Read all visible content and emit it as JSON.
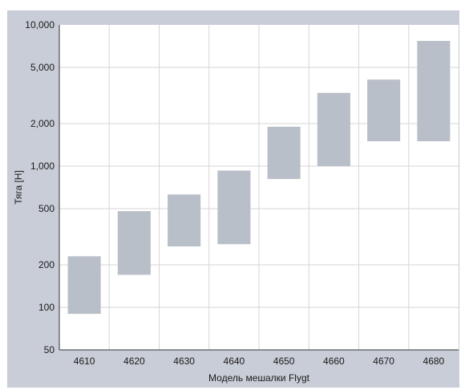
{
  "chart_data": {
    "type": "floating-bar",
    "xlabel": "Модель мешалки Flygt",
    "ylabel": "Тяга [Н]",
    "yscale": "log",
    "ylim": [
      50,
      10000
    ],
    "grid": true,
    "categories": [
      "4610",
      "4620",
      "4630",
      "4640",
      "4650",
      "4660",
      "4670",
      "4680"
    ],
    "ranges": [
      {
        "min": 90,
        "max": 230
      },
      {
        "min": 170,
        "max": 480
      },
      {
        "min": 270,
        "max": 630
      },
      {
        "min": 280,
        "max": 930
      },
      {
        "min": 810,
        "max": 1900
      },
      {
        "min": 1000,
        "max": 3300
      },
      {
        "min": 1500,
        "max": 4100
      },
      {
        "min": 1500,
        "max": 7700
      }
    ],
    "yticks": [
      {
        "value": 50,
        "label": "50"
      },
      {
        "value": 100,
        "label": "100"
      },
      {
        "value": 200,
        "label": "200"
      },
      {
        "value": 500,
        "label": "500"
      },
      {
        "value": 1000,
        "label": "1,000"
      },
      {
        "value": 2000,
        "label": "2,000"
      },
      {
        "value": 5000,
        "label": "5,000"
      },
      {
        "value": 10000,
        "label": "10,000"
      }
    ],
    "colors": {
      "background": "#c9cdd7",
      "plot": "#ffffff",
      "bar": "#b9bfc8",
      "grid": "#d6d6d6",
      "axis": "#333333"
    }
  }
}
